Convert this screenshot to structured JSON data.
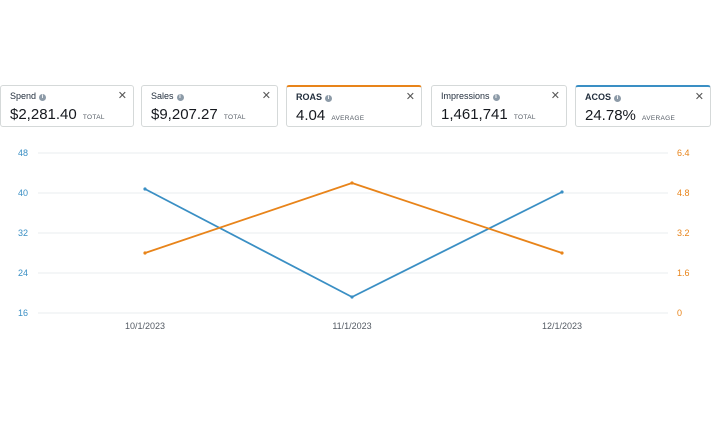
{
  "metrics": [
    {
      "title": "Spend",
      "value": "$2,281.40",
      "sub": "TOTAL",
      "selected": false
    },
    {
      "title": "Sales",
      "value": "$9,207.27",
      "sub": "TOTAL",
      "selected": false
    },
    {
      "title": "ROAS",
      "value": "4.04",
      "sub": "AVERAGE",
      "selected": true,
      "color": "#e8841a"
    },
    {
      "title": "Impressions",
      "value": "1,461,741",
      "sub": "TOTAL",
      "selected": false
    },
    {
      "title": "ACOS",
      "value": "24.78%",
      "sub": "AVERAGE",
      "selected": true,
      "color": "#3a8fc4"
    }
  ],
  "icons": {
    "info": "info-icon",
    "close": "close-icon",
    "close_glyph": "✕",
    "info_glyph": "i"
  },
  "chart_data": {
    "type": "line",
    "x": [
      "10/1/2023",
      "11/1/2023",
      "12/1/2023"
    ],
    "series": [
      {
        "name": "ACOS",
        "axis": "left",
        "color": "#3a8fc4",
        "values": [
          40.8,
          19.2,
          40.2
        ]
      },
      {
        "name": "ROAS",
        "axis": "right",
        "color": "#e8841a",
        "values": [
          2.4,
          5.2,
          2.4
        ]
      }
    ],
    "left_axis": {
      "ticks": [
        "48",
        "40",
        "32",
        "24",
        "16"
      ],
      "ylim": [
        16,
        48
      ],
      "color": "#3a8fc4"
    },
    "right_axis": {
      "ticks": [
        "6.4",
        "4.8",
        "3.2",
        "1.6",
        "0"
      ],
      "ylim": [
        0,
        6.4
      ],
      "color": "#e8841a"
    },
    "grid": true
  }
}
